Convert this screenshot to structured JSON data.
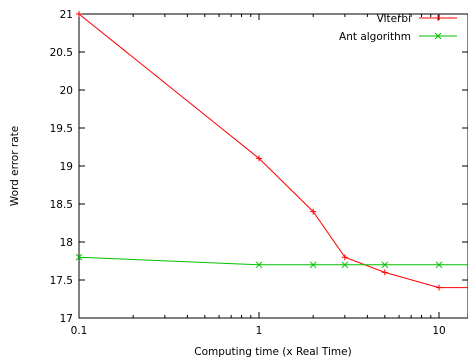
{
  "chart_data": {
    "type": "line",
    "title": "",
    "xlabel": "Computing time (x Real Time)",
    "ylabel": "Word error rate",
    "x_scale": "log",
    "xlim": [
      0.1,
      15
    ],
    "ylim": [
      17,
      21
    ],
    "x_ticks": [
      0.1,
      1,
      10
    ],
    "x_tick_labels": [
      "0.1",
      "1",
      "10"
    ],
    "y_ticks": [
      17,
      17.5,
      18,
      18.5,
      19,
      19.5,
      20,
      20.5,
      21
    ],
    "y_tick_labels": [
      "17",
      "17.5",
      "18",
      "18.5",
      "19",
      "19.5",
      "20",
      "20.5",
      "21"
    ],
    "grid": false,
    "legend_position": "top-right",
    "series": [
      {
        "name": "Viterbi",
        "color": "#ff0000",
        "marker": "plus",
        "x": [
          0.1,
          1,
          2,
          3,
          5,
          10,
          15
        ],
        "y": [
          21,
          19.1,
          18.4,
          17.8,
          17.6,
          17.4,
          17.4
        ],
        "marker_x": [
          0.1,
          1,
          2,
          3,
          5,
          10
        ]
      },
      {
        "name": "Ant algorithm",
        "color": "#00c000",
        "marker": "cross",
        "x": [
          0.1,
          1,
          2,
          3,
          5,
          10,
          15
        ],
        "y": [
          17.8,
          17.7,
          17.7,
          17.7,
          17.7,
          17.7,
          17.7
        ],
        "marker_x": [
          0.1,
          1,
          2,
          3,
          5,
          10
        ]
      }
    ]
  }
}
